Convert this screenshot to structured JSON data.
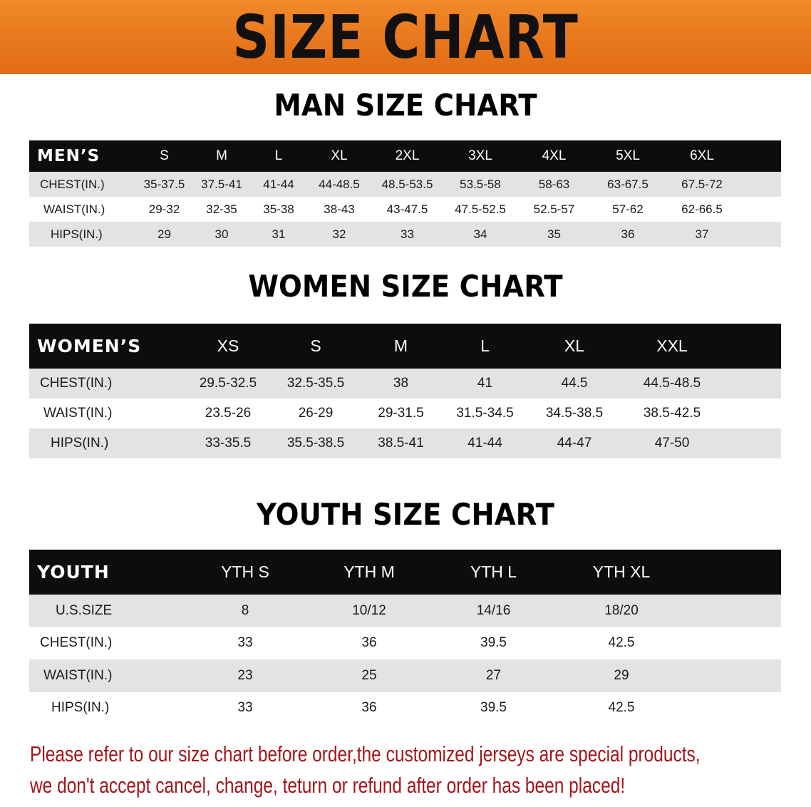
{
  "banner": {
    "title": "SIZE CHART",
    "color": "#e8761c"
  },
  "men": {
    "title": "MAN SIZE CHART",
    "header": [
      "MEN’S",
      "S",
      "M",
      "L",
      "XL",
      "2XL",
      "3XL",
      "4XL",
      "5XL",
      "6XL"
    ],
    "rows": [
      [
        "CHEST(IN.)",
        "35-37.5",
        "37.5-41",
        "41-44",
        "44-48.5",
        "48.5-53.5",
        "53.5-58",
        "58-63",
        "63-67.5",
        "67.5-72"
      ],
      [
        "WAIST(IN.)",
        "29-32",
        "32-35",
        "35-38",
        "38-43",
        "43-47.5",
        "47.5-52.5",
        "52.5-57",
        "57-62",
        "62-66.5"
      ],
      [
        "HIPS(IN.)",
        "29",
        "30",
        "31",
        "32",
        "33",
        "34",
        "35",
        "36",
        "37"
      ]
    ]
  },
  "women": {
    "title": "WOMEN SIZE CHART",
    "header": [
      "WOMEN’S",
      "XS",
      "S",
      "M",
      "L",
      "XL",
      "XXL"
    ],
    "rows": [
      [
        "CHEST(IN.)",
        "29.5-32.5",
        "32.5-35.5",
        "38",
        "41",
        "44.5",
        "44.5-48.5"
      ],
      [
        "WAIST(IN.)",
        "23.5-26",
        "26-29",
        "29-31.5",
        "31.5-34.5",
        "34.5-38.5",
        "38.5-42.5"
      ],
      [
        "HIPS(IN.)",
        "33-35.5",
        "35.5-38.5",
        "38.5-41",
        "41-44",
        "44-47",
        "47-50"
      ]
    ]
  },
  "youth": {
    "title": "YOUTH SIZE CHART",
    "header": [
      "YOUTH",
      "YTH S",
      "YTH M",
      "YTH L",
      "YTH XL"
    ],
    "rows": [
      [
        "U.S.SIZE",
        "8",
        "10/12",
        "14/16",
        "18/20"
      ],
      [
        "CHEST(IN.)",
        "33",
        "36",
        "39.5",
        "42.5"
      ],
      [
        "WAIST(IN.)",
        "23",
        "25",
        "27",
        "29"
      ],
      [
        "HIPS(IN.)",
        "33",
        "36",
        "39.5",
        "42.5"
      ]
    ]
  },
  "footer": {
    "line1": "Please refer to our size chart before order,the customized jerseys are special products,",
    "line2": "we don't accept cancel, change, teturn or refund after order has been placed!",
    "color": "#a3161a"
  }
}
